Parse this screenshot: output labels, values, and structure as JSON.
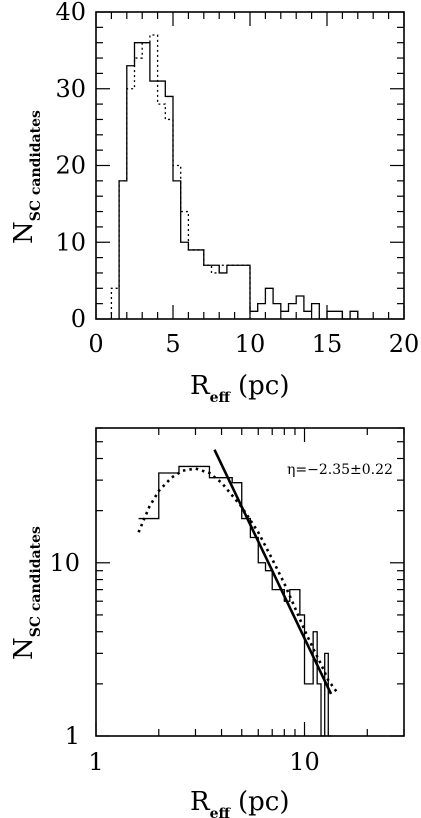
{
  "chart_data": [
    {
      "type": "histogram",
      "xlabel": "R",
      "xlabel_sub": "eff",
      "xlabel_unit": "(pc)",
      "ylabel": "N",
      "ylabel_sub": "SC candidates",
      "xlim": [
        0,
        20
      ],
      "ylim": [
        0,
        40
      ],
      "xticks": [
        "0",
        "5",
        "10",
        "15",
        "20"
      ],
      "yticks": [
        "0",
        "10",
        "20",
        "30",
        "40"
      ],
      "series": [
        {
          "style": "solid",
          "bin_width": 0.5,
          "bins": [
            {
              "x": 1.5,
              "y": 18
            },
            {
              "x": 2.0,
              "y": 33
            },
            {
              "x": 2.5,
              "y": 36
            },
            {
              "x": 3.0,
              "y": 36
            },
            {
              "x": 3.5,
              "y": 31
            },
            {
              "x": 4.0,
              "y": 31
            },
            {
              "x": 4.5,
              "y": 29
            },
            {
              "x": 5.0,
              "y": 18
            },
            {
              "x": 5.5,
              "y": 10
            },
            {
              "x": 6.0,
              "y": 9
            },
            {
              "x": 6.5,
              "y": 9
            },
            {
              "x": 7.0,
              "y": 7
            },
            {
              "x": 7.5,
              "y": 7
            },
            {
              "x": 8.0,
              "y": 6
            },
            {
              "x": 8.5,
              "y": 7
            },
            {
              "x": 9.0,
              "y": 7
            },
            {
              "x": 9.5,
              "y": 7
            },
            {
              "x": 10.0,
              "y": 1
            },
            {
              "x": 10.5,
              "y": 2
            },
            {
              "x": 11.0,
              "y": 4
            },
            {
              "x": 11.5,
              "y": 2
            },
            {
              "x": 12.0,
              "y": 1
            },
            {
              "x": 12.5,
              "y": 2
            },
            {
              "x": 13.0,
              "y": 3
            },
            {
              "x": 13.5,
              "y": 1
            },
            {
              "x": 14.0,
              "y": 2
            },
            {
              "x": 14.5,
              "y": 0
            },
            {
              "x": 15.0,
              "y": 1
            },
            {
              "x": 15.5,
              "y": 1
            },
            {
              "x": 16.0,
              "y": 0
            },
            {
              "x": 16.5,
              "y": 1
            }
          ]
        },
        {
          "style": "dotted",
          "bin_width": 0.5,
          "bins": [
            {
              "x": 1.0,
              "y": 4
            },
            {
              "x": 1.5,
              "y": 18
            },
            {
              "x": 2.0,
              "y": 30
            },
            {
              "x": 2.5,
              "y": 34
            },
            {
              "x": 3.0,
              "y": 36
            },
            {
              "x": 3.5,
              "y": 37
            },
            {
              "x": 4.0,
              "y": 28
            },
            {
              "x": 4.5,
              "y": 26
            },
            {
              "x": 5.0,
              "y": 20
            },
            {
              "x": 5.5,
              "y": 14
            },
            {
              "x": 6.0,
              "y": 9
            },
            {
              "x": 6.5,
              "y": 9
            },
            {
              "x": 7.0,
              "y": 7
            },
            {
              "x": 7.5,
              "y": 6
            },
            {
              "x": 8.0,
              "y": 7
            },
            {
              "x": 8.5,
              "y": 7
            },
            {
              "x": 9.0,
              "y": 7
            },
            {
              "x": 9.5,
              "y": 7
            }
          ]
        }
      ]
    },
    {
      "type": "line",
      "scale": "log-log",
      "xlabel": "R",
      "xlabel_sub": "eff",
      "xlabel_unit": "(pc)",
      "ylabel": "N",
      "ylabel_sub": "SC candidates",
      "xlim": [
        1,
        30
      ],
      "ylim": [
        1,
        60
      ],
      "xticks": [
        "1",
        "10"
      ],
      "yticks": [
        "1",
        "10"
      ],
      "annotation": "η=−2.35±0.22",
      "histogram": {
        "style": "solid",
        "edges": [
          1.6,
          2.0,
          2.5,
          3.0,
          3.5,
          4.0,
          4.5,
          5.0,
          5.5,
          6.0,
          6.5,
          7.0,
          7.5,
          8.0,
          8.5,
          9.0,
          9.5,
          10.0,
          10.5,
          11.0,
          11.5,
          12.0,
          12.5,
          13.0,
          13.5
        ],
        "values": [
          18,
          33,
          36,
          36,
          31,
          31,
          29,
          18,
          14,
          10,
          9,
          7,
          7,
          6,
          7,
          7,
          5,
          2,
          2,
          4,
          2,
          1,
          3,
          1
        ]
      },
      "series": [
        {
          "style": "solid",
          "points": [
            {
              "x": 3.7,
              "y": 45
            },
            {
              "x": 13.4,
              "y": 1.75
            }
          ]
        },
        {
          "style": "dotted",
          "points": [
            {
              "x": 1.6,
              "y": 15
            },
            {
              "x": 1.8,
              "y": 21
            },
            {
              "x": 2.0,
              "y": 26
            },
            {
              "x": 2.3,
              "y": 31
            },
            {
              "x": 2.6,
              "y": 34
            },
            {
              "x": 3.0,
              "y": 35
            },
            {
              "x": 3.5,
              "y": 33
            },
            {
              "x": 4.0,
              "y": 29
            },
            {
              "x": 5.0,
              "y": 21
            },
            {
              "x": 6.0,
              "y": 15
            },
            {
              "x": 7.0,
              "y": 10.5
            },
            {
              "x": 8.0,
              "y": 7.6
            },
            {
              "x": 9.0,
              "y": 5.5
            },
            {
              "x": 10.0,
              "y": 4.1
            },
            {
              "x": 11.0,
              "y": 3.2
            },
            {
              "x": 12.0,
              "y": 2.6
            },
            {
              "x": 13.0,
              "y": 2.1
            },
            {
              "x": 14.5,
              "y": 1.75
            }
          ]
        }
      ]
    }
  ]
}
